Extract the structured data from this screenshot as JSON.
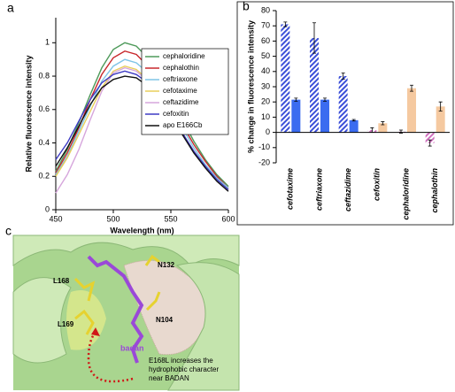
{
  "chart_data": [
    {
      "type": "line",
      "panel_label": "a",
      "xlabel": "Wavelength (nm)",
      "ylabel": "Relative fluorescence intensity",
      "x": [
        450,
        460,
        470,
        480,
        490,
        500,
        510,
        520,
        530,
        540,
        550,
        560,
        570,
        580,
        590,
        600
      ],
      "xlim": [
        450,
        600
      ],
      "xticks": [
        450,
        500,
        550,
        600
      ],
      "ylim": [
        0,
        1.15
      ],
      "yticks": [
        0,
        0.2,
        0.4,
        0.6,
        0.8,
        1
      ],
      "legend": "upper right",
      "series": [
        {
          "name": "cephaloridine",
          "color": "#4e9a5a",
          "values": [
            0.23,
            0.36,
            0.52,
            0.69,
            0.85,
            0.96,
            1.0,
            0.98,
            0.91,
            0.8,
            0.67,
            0.54,
            0.41,
            0.3,
            0.21,
            0.14
          ]
        },
        {
          "name": "cephalothin",
          "color": "#c8282c",
          "values": [
            0.22,
            0.34,
            0.49,
            0.66,
            0.81,
            0.91,
            0.95,
            0.93,
            0.86,
            0.76,
            0.64,
            0.51,
            0.39,
            0.29,
            0.2,
            0.13
          ]
        },
        {
          "name": "ceftriaxone",
          "color": "#7fc4e6",
          "values": [
            0.21,
            0.32,
            0.47,
            0.62,
            0.77,
            0.86,
            0.9,
            0.88,
            0.82,
            0.72,
            0.6,
            0.49,
            0.37,
            0.27,
            0.19,
            0.13
          ]
        },
        {
          "name": "cefotaxime",
          "color": "#e8cf5a",
          "values": [
            0.2,
            0.31,
            0.45,
            0.59,
            0.73,
            0.83,
            0.86,
            0.84,
            0.78,
            0.69,
            0.58,
            0.46,
            0.35,
            0.26,
            0.18,
            0.12
          ]
        },
        {
          "name": "ceftazidime",
          "color": "#d6a6dc",
          "values": [
            0.1,
            0.21,
            0.36,
            0.54,
            0.71,
            0.82,
            0.85,
            0.83,
            0.77,
            0.68,
            0.57,
            0.46,
            0.35,
            0.26,
            0.18,
            0.12
          ]
        },
        {
          "name": "cefoxitin",
          "color": "#3d3ac4",
          "values": [
            0.3,
            0.4,
            0.53,
            0.66,
            0.76,
            0.81,
            0.83,
            0.81,
            0.76,
            0.67,
            0.57,
            0.46,
            0.35,
            0.26,
            0.18,
            0.12
          ]
        },
        {
          "name": "apo E166Cb",
          "color": "#111111",
          "values": [
            0.26,
            0.37,
            0.5,
            0.63,
            0.73,
            0.78,
            0.8,
            0.79,
            0.74,
            0.66,
            0.56,
            0.45,
            0.34,
            0.25,
            0.17,
            0.11
          ]
        }
      ]
    },
    {
      "type": "bar",
      "panel_label": "b",
      "ylabel": "% change in fluorescence intensity",
      "categories": [
        "cefotaxime",
        "ceftriaxone",
        "ceftazidime",
        "cefoxitin",
        "cephaloridine",
        "cephalothin"
      ],
      "ylim": [
        -20,
        80
      ],
      "yticks": [
        -20,
        -10,
        0,
        10,
        20,
        30,
        40,
        50,
        60,
        70,
        80
      ],
      "series": [
        {
          "hatched": true,
          "colors": [
            "#3b4fd8",
            "#3b4fd8",
            "#3b4fd8",
            "#d070c0",
            "#d070c0",
            "#d070c0"
          ],
          "values": [
            71,
            62,
            37,
            1.5,
            0.5,
            -7
          ],
          "errors": [
            1.5,
            10,
            2,
            1.5,
            1,
            2
          ]
        },
        {
          "hatched": false,
          "colors": [
            "#3b6cf0",
            "#3b6cf0",
            "#3b6cf0",
            "#f5c9a0",
            "#f5c9a0",
            "#f5c9a0"
          ],
          "values": [
            21.5,
            21.5,
            8,
            6,
            29,
            17
          ],
          "errors": [
            1,
            1,
            0.5,
            1,
            2,
            3
          ]
        }
      ]
    }
  ],
  "figure_c": {
    "panel_label": "c",
    "residues": [
      "L168",
      "N132",
      "L169",
      "N104"
    ],
    "ligand": "badan",
    "annotation": [
      "E168L increases the",
      "hydrophobic character",
      "near BADAN"
    ]
  }
}
